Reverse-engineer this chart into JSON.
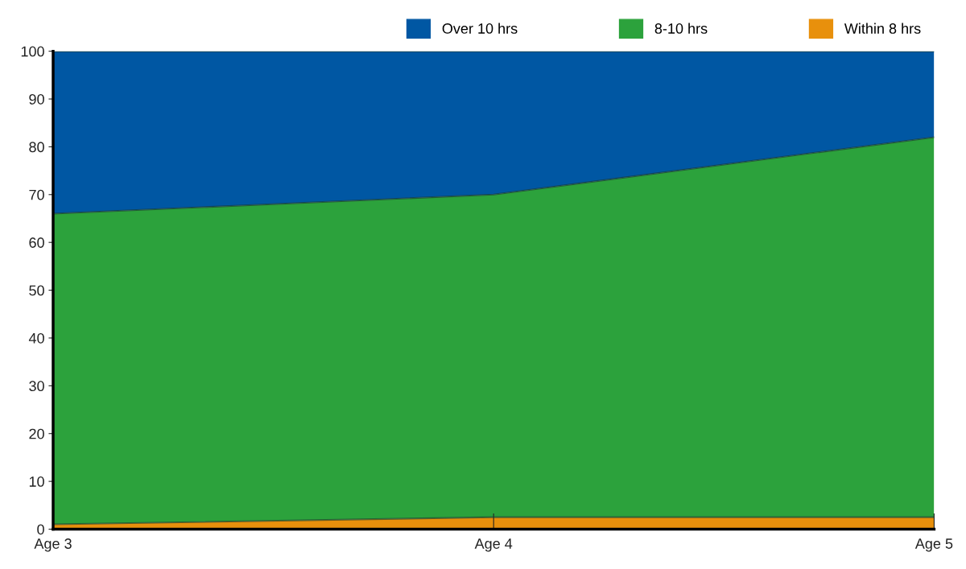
{
  "chart_data": {
    "type": "area",
    "stacked": true,
    "categories": [
      "Age 3",
      "Age 4",
      "Age 5"
    ],
    "series": [
      {
        "name": "Within 8 hrs",
        "color": "#e8900c",
        "values": [
          1,
          2.5,
          2.5
        ]
      },
      {
        "name": "8-10 hrs",
        "color": "#2ca23c",
        "values": [
          65,
          67.5,
          79.5
        ]
      },
      {
        "name": "Over 10 hrs",
        "color": "#0057a3",
        "values": [
          34,
          30,
          18
        ]
      }
    ],
    "ylim": [
      0,
      100
    ],
    "yticks": [
      0,
      10,
      20,
      30,
      40,
      50,
      60,
      70,
      80,
      90,
      100
    ],
    "grid": false,
    "legend": "top"
  }
}
